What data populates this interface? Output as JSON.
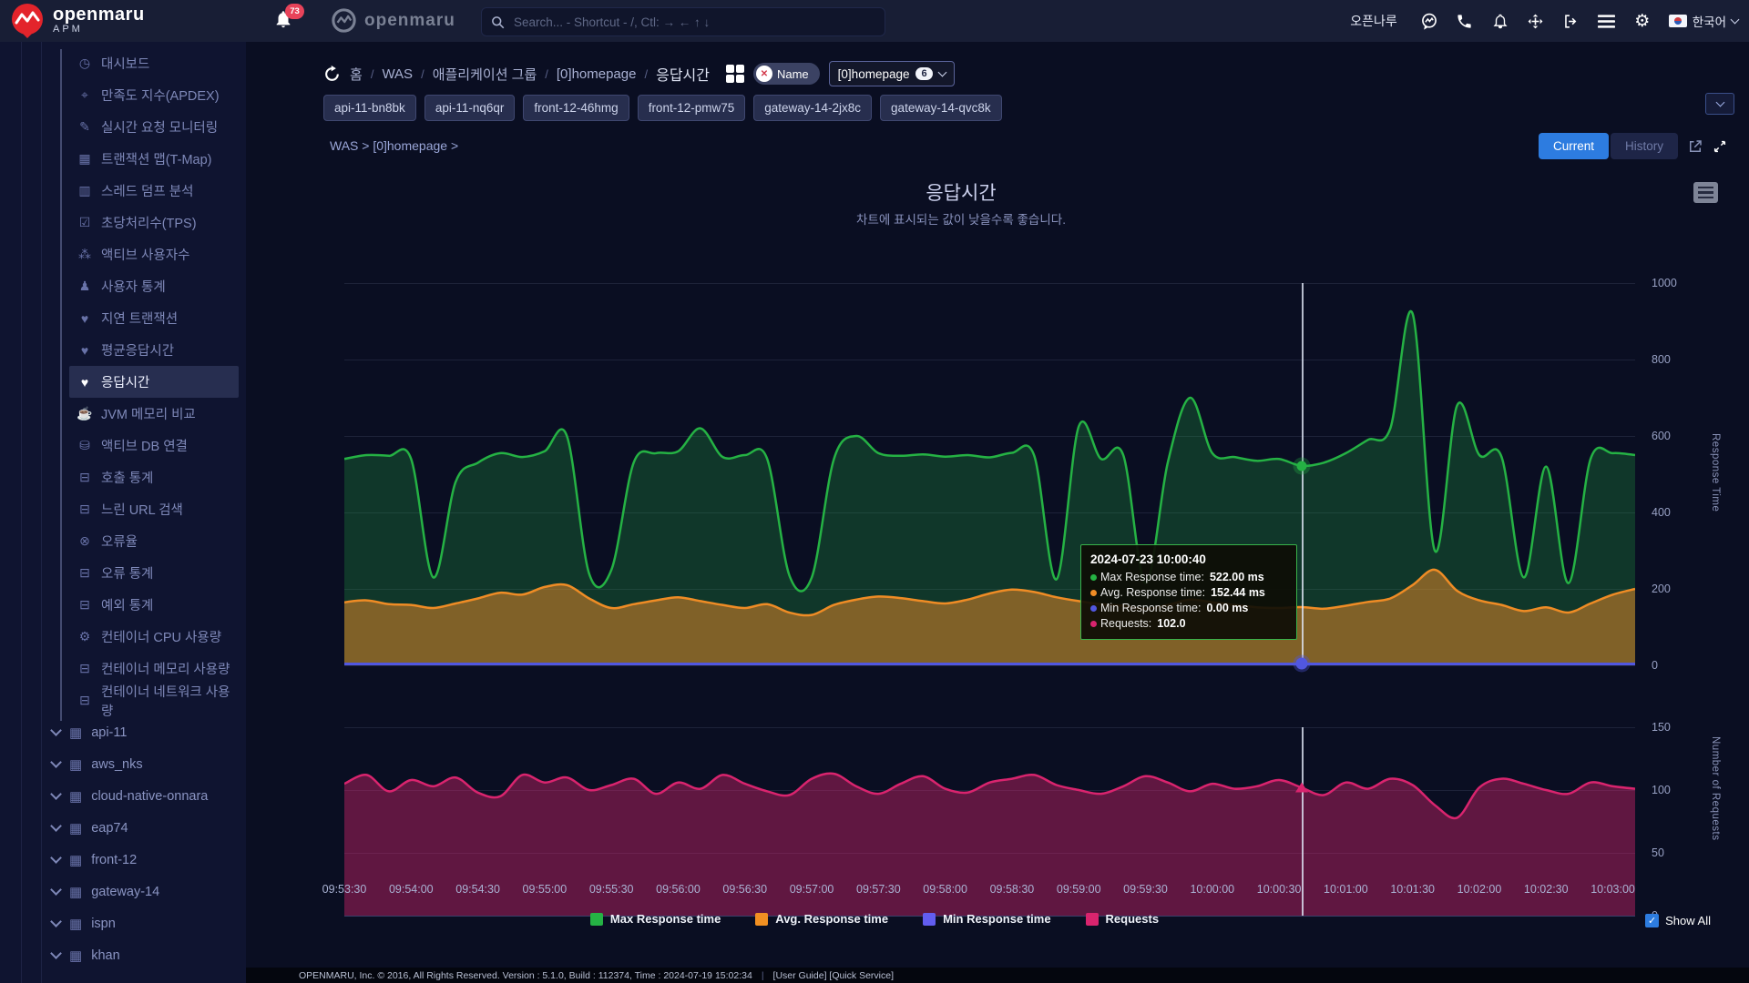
{
  "header": {
    "product_title": "openmaru",
    "product_sub": "APM",
    "notifications": "73",
    "partner_logo": "openmaru",
    "search_placeholder": "Search... - Shortcut - /, Ctl: → ← ↑ ↓",
    "username": "오픈나루",
    "language": "한국어",
    "accent_color": "#2d7ce0"
  },
  "sidebar": {
    "menu": [
      {
        "label": "대시보드",
        "icon": "dashboard-icon",
        "glyph": "◷",
        "active": false
      },
      {
        "label": "만족도 지수(APDEX)",
        "icon": "apdex-icon",
        "glyph": "⌖",
        "active": false
      },
      {
        "label": "실시간 요청 모니터링",
        "icon": "realtime-monitoring-icon",
        "glyph": "✎",
        "active": false
      },
      {
        "label": "트랜잭션 맵(T-Map)",
        "icon": "transaction-map-icon",
        "glyph": "▦",
        "active": false
      },
      {
        "label": "스레드 덤프 분석",
        "icon": "thread-dump-icon",
        "glyph": "▥",
        "active": false
      },
      {
        "label": "초당처리수(TPS)",
        "icon": "tps-icon",
        "glyph": "☑",
        "active": false
      },
      {
        "label": "액티브 사용자수",
        "icon": "active-users-icon",
        "glyph": "⁂",
        "active": false
      },
      {
        "label": "사용자 통계",
        "icon": "user-stats-icon",
        "glyph": "♟",
        "active": false
      },
      {
        "label": "지연 트랜잭션",
        "icon": "delayed-transaction-icon",
        "glyph": "♥",
        "active": false
      },
      {
        "label": "평균응답시간",
        "icon": "avg-response-time-icon",
        "glyph": "♥",
        "active": false
      },
      {
        "label": "응답시간",
        "icon": "response-time-icon",
        "glyph": "♥",
        "active": true
      },
      {
        "label": "JVM 메모리 비교",
        "icon": "jvm-memory-icon",
        "glyph": "☕",
        "active": false
      },
      {
        "label": "액티브 DB 연결",
        "icon": "active-db-icon",
        "glyph": "⛁",
        "active": false
      },
      {
        "label": "호출 통계",
        "icon": "call-stats-icon",
        "glyph": "⊟",
        "active": false
      },
      {
        "label": "느린 URL 검색",
        "icon": "slow-url-icon",
        "glyph": "⊟",
        "active": false
      },
      {
        "label": "오류율",
        "icon": "error-rate-icon",
        "glyph": "⊗",
        "active": false
      },
      {
        "label": "오류 통계",
        "icon": "error-stats-icon",
        "glyph": "⊟",
        "active": false
      },
      {
        "label": "예외 통계",
        "icon": "exception-stats-icon",
        "glyph": "⊟",
        "active": false
      },
      {
        "label": "컨테이너 CPU 사용량",
        "icon": "container-cpu-icon",
        "glyph": "⚙",
        "active": false
      },
      {
        "label": "컨테이너 메모리 사용량",
        "icon": "container-memory-icon",
        "glyph": "⊟",
        "active": false
      },
      {
        "label": "컨테이너 네트워크 사용량",
        "icon": "container-network-icon",
        "glyph": "⊟",
        "active": false
      }
    ],
    "groups": [
      {
        "label": "api-11"
      },
      {
        "label": "aws_nks"
      },
      {
        "label": "cloud-native-onnara"
      },
      {
        "label": "eap74"
      },
      {
        "label": "front-12"
      },
      {
        "label": "gateway-14"
      },
      {
        "label": "ispn"
      },
      {
        "label": "khan"
      }
    ]
  },
  "breadcrumb": {
    "crumbs": [
      "홈",
      "WAS",
      "애플리케이션 그룹",
      "[0]homepage",
      "응답시간"
    ],
    "filter_pill": "Name",
    "scope_dropdown": {
      "label": "[0]homepage",
      "count": "6"
    }
  },
  "filters": {
    "tags": [
      "api-11-bn8bk",
      "api-11-nq6qr",
      "front-12-46hmg",
      "front-12-pmw75",
      "gateway-14-2jx8c",
      "gateway-14-qvc8k"
    ]
  },
  "context": {
    "path": "WAS > [0]homepage >"
  },
  "toolbar": {
    "current_label": "Current",
    "history_label": "History"
  },
  "chart": {
    "tooltip": {
      "title": "2024-07-23 10:00:40",
      "rows": [
        {
          "color": "#25b244",
          "label": "Max Response time",
          "value": "522.00 ms"
        },
        {
          "color": "#ef8c25",
          "label": "Avg. Response time",
          "value": "152.44 ms"
        },
        {
          "color": "#5157e0",
          "label": "Min Response time",
          "value": "0.00 ms"
        },
        {
          "color": "#d9246e",
          "label": "Requests",
          "value": "102.0"
        }
      ]
    },
    "legend": [
      {
        "label": "Max Response time",
        "color": "#25b244"
      },
      {
        "label": "Avg. Response time",
        "color": "#f29022"
      },
      {
        "label": "Min Response time",
        "color": "#625df0"
      },
      {
        "label": "Requests",
        "color": "#d9246e"
      }
    ],
    "show_all_label": "Show All"
  },
  "chart_data": [
    {
      "type": "area",
      "title": "응답시간",
      "subtitle": "차트에 표시되는 값이 낮을수록 좋습니다.",
      "x_start": "09:53:30",
      "x_step_seconds": 10,
      "x_ticks": [
        "09:53:30",
        "09:54:00",
        "09:54:30",
        "09:55:00",
        "09:55:30",
        "09:56:00",
        "09:56:30",
        "09:57:00",
        "09:57:30",
        "09:58:00",
        "09:58:30",
        "09:59:00",
        "09:59:30",
        "10:00:00",
        "10:00:30",
        "10:01:00",
        "10:01:30",
        "10:02:00",
        "10:02:30",
        "10:03:00"
      ],
      "ylabel": "Response Time",
      "ylim": [
        0,
        1000
      ],
      "yticks": [
        0,
        200,
        400,
        600,
        800,
        1000
      ],
      "highlight_index": 43,
      "series": [
        {
          "name": "Max Response time",
          "color": "#25b244",
          "fill_opacity": 0.25,
          "stroke": 2.5,
          "values": [
            540,
            550,
            548,
            540,
            230,
            480,
            530,
            555,
            545,
            560,
            600,
            240,
            250,
            530,
            555,
            560,
            620,
            545,
            550,
            540,
            235,
            230,
            540,
            600,
            555,
            548,
            552,
            546,
            550,
            544,
            556,
            548,
            225,
            625,
            540,
            550,
            215,
            530,
            700,
            555,
            545,
            535,
            540,
            522,
            530,
            555,
            590,
            620,
            920,
            300,
            680,
            550,
            545,
            230,
            520,
            215,
            540,
            555,
            550
          ]
        },
        {
          "name": "Avg. Response time",
          "color": "#ef8c25",
          "fill_opacity": 0.5,
          "stroke": 2.5,
          "values": [
            165,
            170,
            160,
            158,
            150,
            162,
            175,
            190,
            185,
            205,
            210,
            175,
            150,
            160,
            170,
            178,
            168,
            158,
            150,
            160,
            138,
            132,
            158,
            172,
            180,
            176,
            168,
            162,
            172,
            188,
            198,
            192,
            178,
            168,
            160,
            156,
            148,
            158,
            172,
            165,
            158,
            152,
            150,
            152.44,
            148,
            156,
            166,
            175,
            210,
            250,
            195,
            170,
            158,
            142,
            152,
            138,
            162,
            185,
            200
          ]
        },
        {
          "name": "Min Response time",
          "color": "#5157e0",
          "fill_opacity": 0,
          "stroke": 3,
          "values": [
            0,
            0,
            0,
            0,
            0,
            0,
            0,
            0,
            0,
            0,
            0,
            0,
            0,
            0,
            0,
            0,
            0,
            0,
            0,
            0,
            0,
            0,
            0,
            0,
            0,
            0,
            0,
            0,
            0,
            0,
            0,
            0,
            0,
            0,
            0,
            0,
            0,
            0,
            0,
            0,
            0,
            0,
            0,
            0,
            0,
            0,
            0,
            0,
            0,
            0,
            0,
            0,
            0,
            0,
            0,
            0,
            0,
            0,
            0
          ]
        }
      ]
    },
    {
      "type": "area",
      "ylabel": "Number of Requests",
      "ylim": [
        0,
        150
      ],
      "yticks": [
        0,
        50,
        100,
        150
      ],
      "series": [
        {
          "name": "Requests",
          "color": "#d9246e",
          "fill_opacity": 0.42,
          "stroke": 2.5,
          "values": [
            105,
            112,
            99,
            108,
            103,
            110,
            98,
            95,
            112,
            106,
            110,
            100,
            104,
            109,
            97,
            106,
            101,
            112,
            105,
            99,
            96,
            109,
            113,
            103,
            97,
            105,
            111,
            101,
            98,
            106,
            109,
            112,
            104,
            100,
            97,
            103,
            111,
            106,
            99,
            105,
            101,
            103,
            108,
            102,
            96,
            106,
            101,
            109,
            104,
            88,
            78,
            102,
            109,
            105,
            100,
            97,
            106,
            103,
            101
          ]
        }
      ]
    }
  ],
  "footer": {
    "copyright": "OPENMARU, Inc. © 2016, All Rights Reserved.  Version : 5.1.0, Build : 112374, Time : 2024-07-19 15:02:34",
    "links": "[User Guide] [Quick Service]"
  }
}
